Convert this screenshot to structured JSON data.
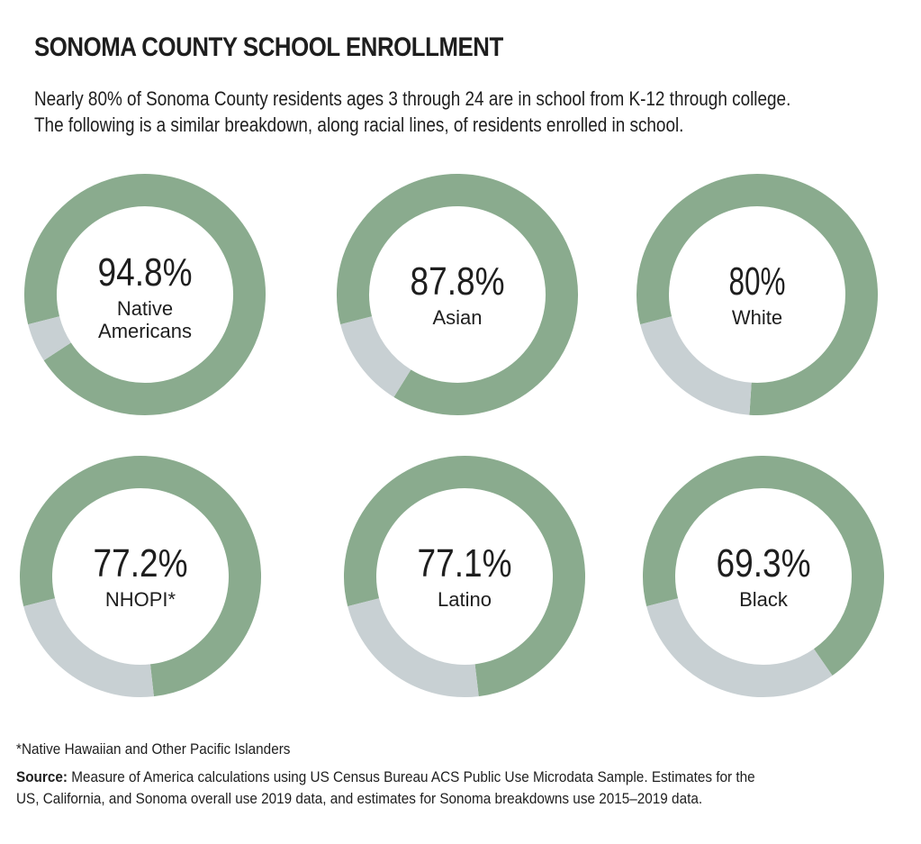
{
  "chart_data": {
    "type": "pie",
    "title": "SONOMA COUNTY SCHOOL ENROLLMENT",
    "subtitle_lines": [
      "Nearly 80% of Sonoma County residents ages 3 through 24 are in school from K-12 through college.",
      "The following is a similar breakdown, along racial lines, of residents enrolled in school."
    ],
    "colors": {
      "enrolled": "#8aab8e",
      "remainder": "#c8d0d3"
    },
    "series": [
      {
        "name": "Native Americans",
        "label_lines": [
          "Native",
          "Americans"
        ],
        "value": 94.8,
        "display": "94.8%"
      },
      {
        "name": "Asian",
        "label_lines": [
          "Asian"
        ],
        "value": 87.8,
        "display": "87.8%"
      },
      {
        "name": "White",
        "label_lines": [
          "White"
        ],
        "value": 80,
        "display": "80%"
      },
      {
        "name": "NHOPI*",
        "label_lines": [
          "NHOPI*"
        ],
        "value": 77.2,
        "display": "77.2%"
      },
      {
        "name": "Latino",
        "label_lines": [
          "Latino"
        ],
        "value": 77.1,
        "display": "77.1%"
      },
      {
        "name": "Black",
        "label_lines": [
          "Black"
        ],
        "value": 69.3,
        "display": "69.3%"
      }
    ]
  },
  "footnote": "*Native Hawaiian and Other Pacific Islanders",
  "source": {
    "label": "Source:",
    "line1": " Measure of America calculations using US Census Bureau ACS Public Use Microdata Sample. Estimates for the",
    "line2": "US, California, and Sonoma overall use 2019 data, and estimates for Sonoma breakdowns use 2015–2019 data."
  }
}
